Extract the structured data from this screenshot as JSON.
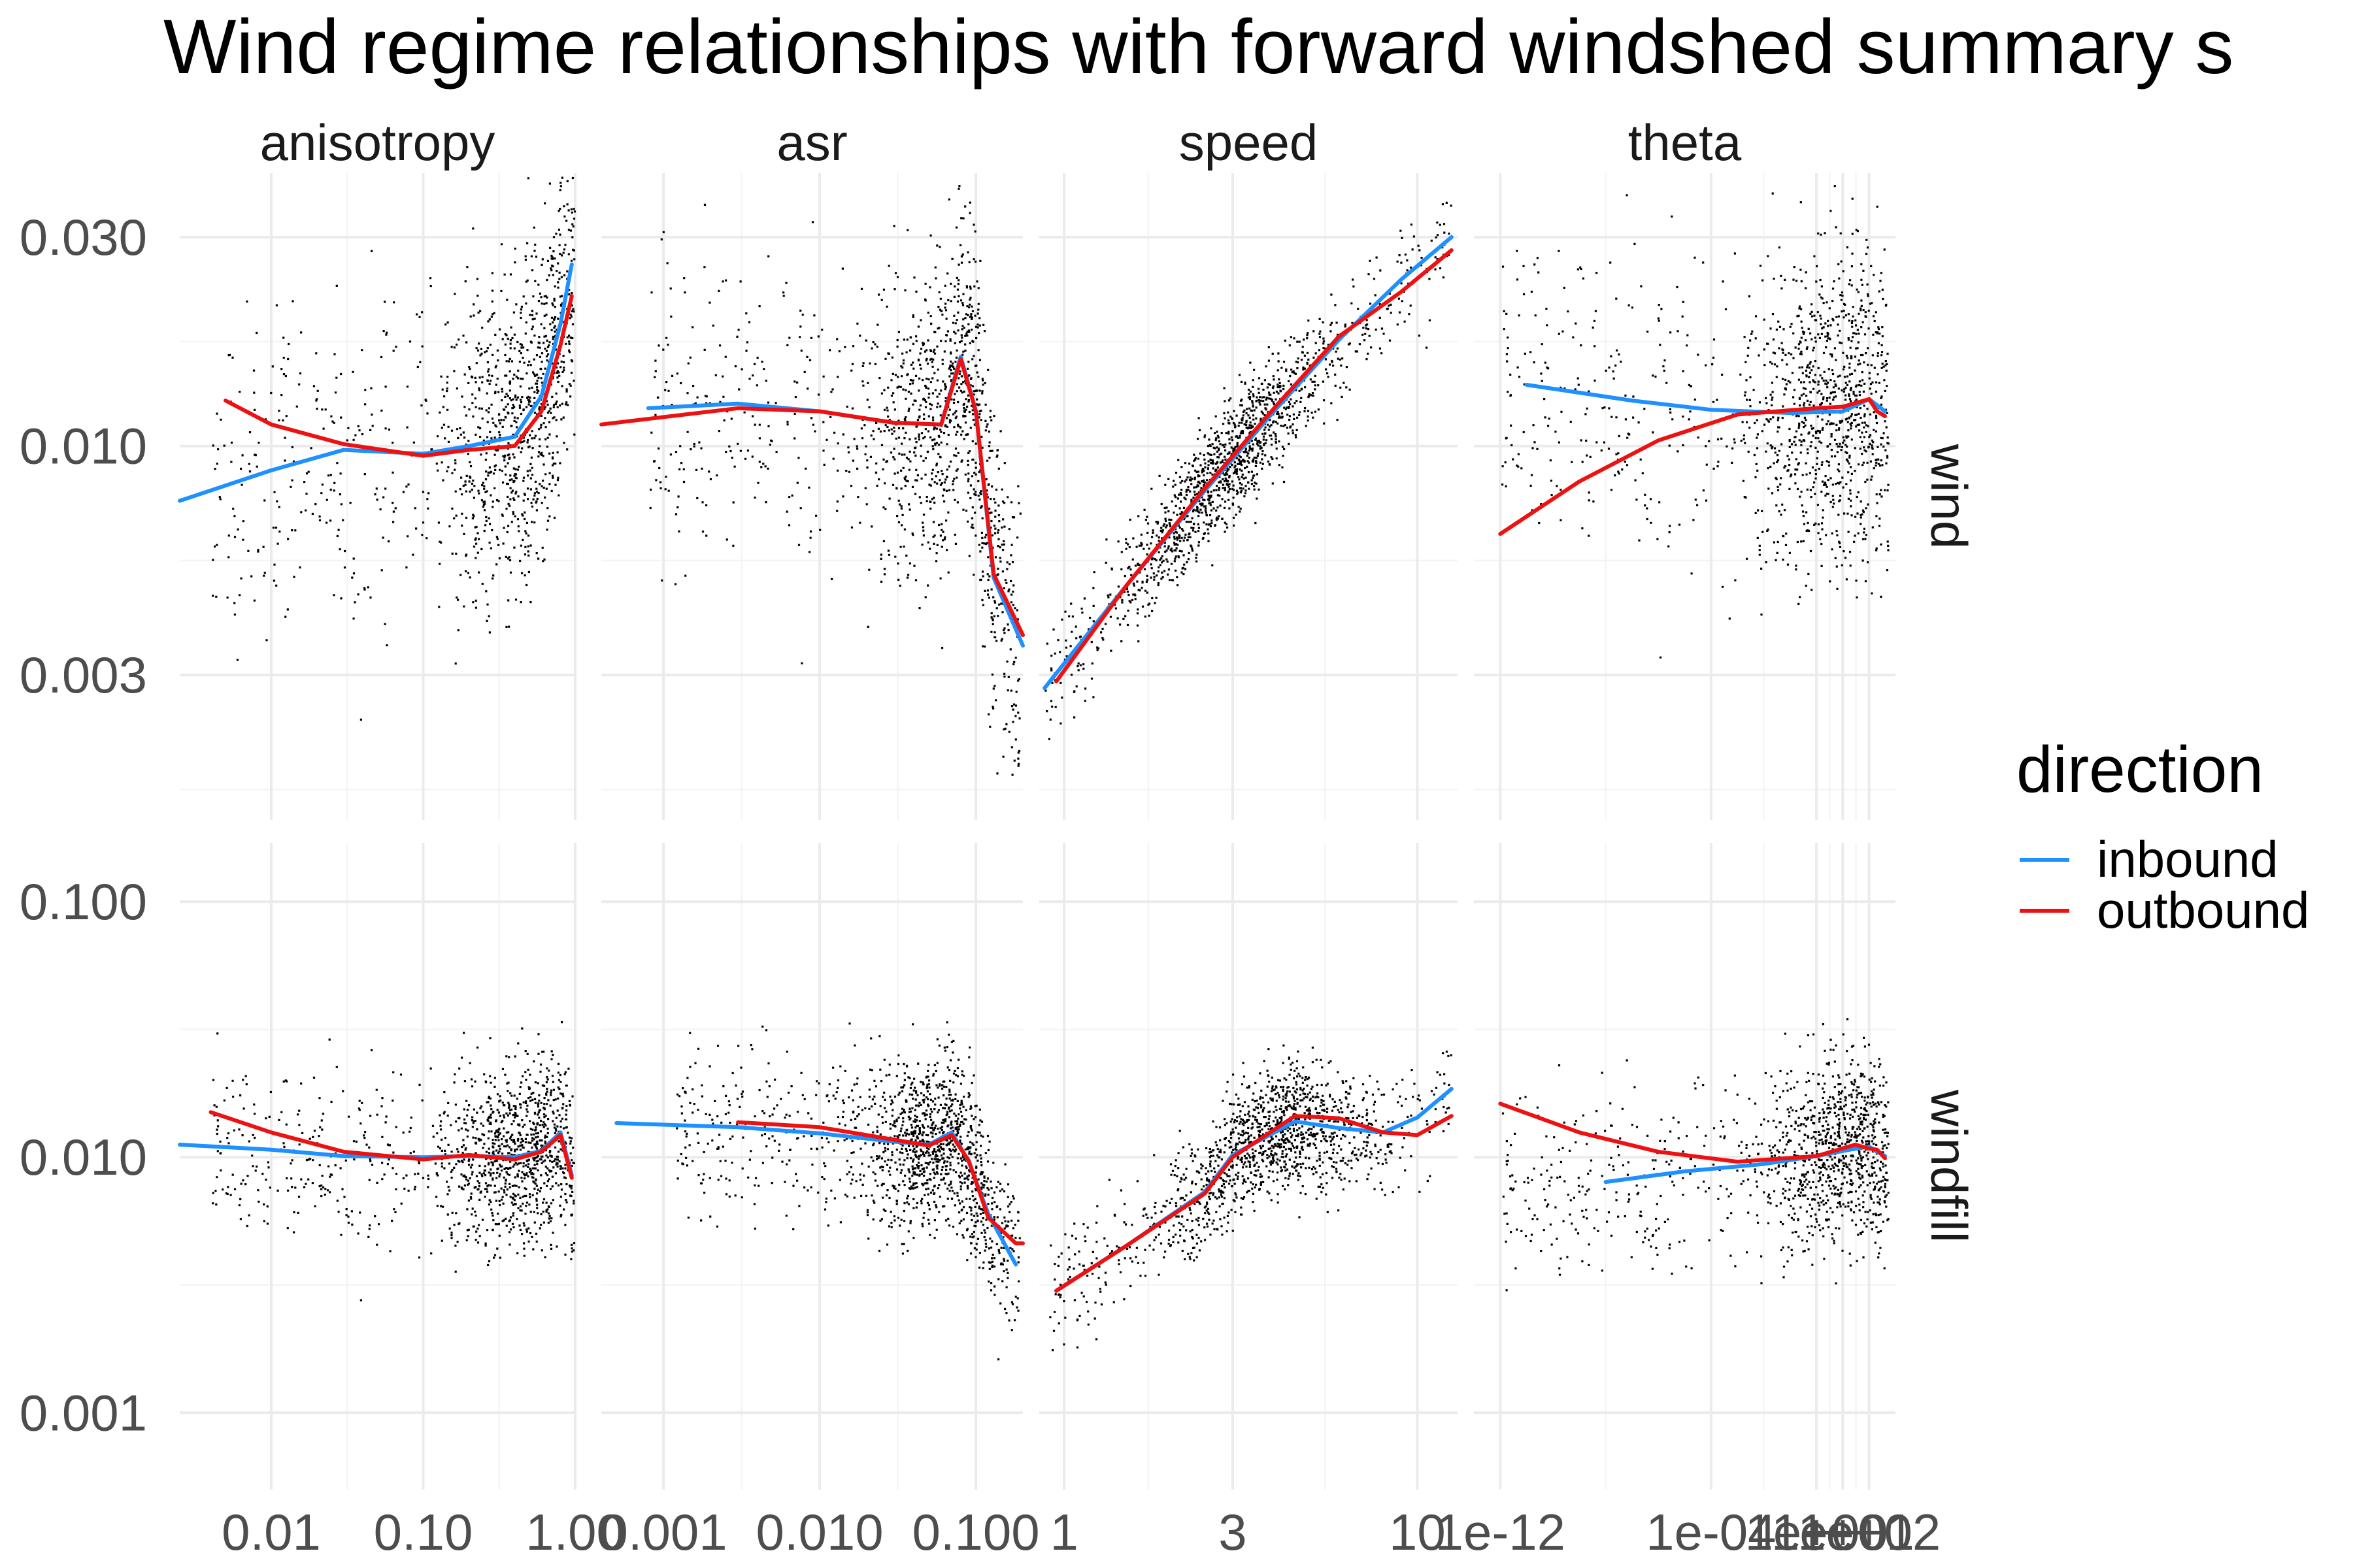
{
  "chart_data": {
    "type": "scatter",
    "title": "Wind regime relationships with forward windshed summary s",
    "facet_columns": [
      "anisotropy",
      "asr",
      "speed",
      "theta"
    ],
    "facet_rows": [
      "wind",
      "windfill"
    ],
    "y_scale": "log10",
    "x_scale": "log10",
    "grid": true,
    "legend": {
      "title": "direction",
      "position": "right",
      "entries": [
        {
          "name": "inbound",
          "color": "#1e90ff"
        },
        {
          "name": "outbound",
          "color": "#ee1111"
        }
      ]
    },
    "x_axes": {
      "anisotropy": {
        "range": [
          0.0025,
          1.0
        ],
        "ticks": [
          0.01,
          0.1,
          1.0
        ],
        "labels": [
          "0.01",
          "0.10",
          "1.00"
        ]
      },
      "asr": {
        "range": [
          0.0004,
          0.2
        ],
        "ticks": [
          0.001,
          0.01,
          0.1
        ],
        "labels": [
          "0.001",
          "0.010",
          "0.100"
        ]
      },
      "speed": {
        "range": [
          0.85,
          13
        ],
        "ticks": [
          1,
          3,
          10
        ],
        "labels": [
          "1",
          "3",
          "10"
        ]
      },
      "theta": {
        "range": [
          1e-13,
          1000
        ],
        "ticks": [
          1e-12,
          0.0001,
          1,
          10,
          100
        ],
        "labels": [
          "1e-12",
          "1e-04",
          "1e+00",
          "1e+01",
          "1e+02"
        ]
      }
    },
    "y_axes": {
      "wind": {
        "range": [
          0.0014,
          0.042
        ],
        "ticks": [
          0.003,
          0.01,
          0.03
        ],
        "labels": [
          "0.003",
          "0.010",
          "0.030"
        ]
      },
      "windfill": {
        "range": [
          0.0005,
          0.17
        ],
        "ticks": [
          0.001,
          0.01,
          0.1
        ],
        "labels": [
          "0.001",
          "0.010",
          "0.100"
        ]
      }
    },
    "panels": [
      {
        "row": "wind",
        "col": "anisotropy",
        "scatter": {
          "x_range": [
            0.004,
            0.98
          ],
          "x_center": 0.55,
          "y_center": 0.011,
          "y_spread": 0.35
        },
        "series": [
          {
            "name": "inbound",
            "x": [
              0.0025,
              0.01,
              0.03,
              0.1,
              0.2,
              0.4,
              0.6,
              0.8,
              0.95
            ],
            "y": [
              0.0075,
              0.0088,
              0.0098,
              0.0096,
              0.01,
              0.0105,
              0.013,
              0.019,
              0.026
            ]
          },
          {
            "name": "outbound",
            "x": [
              0.005,
              0.01,
              0.03,
              0.1,
              0.2,
              0.4,
              0.6,
              0.8,
              0.95
            ],
            "y": [
              0.0127,
              0.0112,
              0.0101,
              0.0095,
              0.0098,
              0.01,
              0.012,
              0.017,
              0.022
            ]
          }
        ]
      },
      {
        "row": "wind",
        "col": "asr",
        "scatter": {
          "x_range": [
            0.0008,
            0.19
          ],
          "x_center": 0.08,
          "y_center": 0.012,
          "y_spread": 0.33
        },
        "series": [
          {
            "name": "inbound",
            "x": [
              0.0008,
              0.003,
              0.01,
              0.03,
              0.06,
              0.08,
              0.1,
              0.13,
              0.2
            ],
            "y": [
              0.0122,
              0.0125,
              0.012,
              0.0113,
              0.0112,
              0.016,
              0.012,
              0.005,
              0.0035
            ]
          },
          {
            "name": "outbound",
            "x": [
              0.0004,
              0.003,
              0.01,
              0.03,
              0.06,
              0.08,
              0.1,
              0.13,
              0.2
            ],
            "y": [
              0.0112,
              0.0122,
              0.012,
              0.0113,
              0.0112,
              0.0158,
              0.012,
              0.0051,
              0.0037
            ]
          }
        ]
      },
      {
        "row": "wind",
        "col": "speed",
        "scatter": {
          "x_range": [
            0.88,
            12.5
          ],
          "x_center": 3,
          "y_center": 0.0105,
          "y_spread": 0.12
        },
        "series": [
          {
            "name": "inbound",
            "x": [
              0.88,
              1.5,
              2.5,
              4,
              6,
              9,
              12.5
            ],
            "y": [
              0.0028,
              0.0048,
              0.0079,
              0.0122,
              0.0175,
              0.024,
              0.03
            ]
          },
          {
            "name": "outbound",
            "x": [
              0.95,
              1.5,
              2.5,
              4,
              6,
              9,
              12.5
            ],
            "y": [
              0.0029,
              0.0048,
              0.008,
              0.0124,
              0.0178,
              0.0225,
              0.028
            ]
          }
        ]
      },
      {
        "row": "wind",
        "col": "theta",
        "scatter": {
          "x_range": [
            1e-12,
            500
          ],
          "x_center": 10,
          "y_center": 0.011,
          "y_spread": 0.33
        },
        "series": [
          {
            "name": "inbound",
            "x": [
              1e-11,
              1e-07,
              0.0001,
              0.1,
              10,
              100,
              200,
              400
            ],
            "y": [
              0.0138,
              0.0127,
              0.0121,
              0.0119,
              0.012,
              0.0128,
              0.0124,
              0.012
            ]
          },
          {
            "name": "outbound",
            "x": [
              1e-12,
              1e-09,
              1e-06,
              0.001,
              1,
              10,
              100,
              200,
              400
            ],
            "y": [
              0.0063,
              0.0083,
              0.0103,
              0.0118,
              0.0122,
              0.0123,
              0.0128,
              0.012,
              0.0117
            ]
          }
        ]
      },
      {
        "row": "windfill",
        "col": "anisotropy",
        "scatter": {
          "x_range": [
            0.004,
            0.98
          ],
          "x_center": 0.5,
          "y_center": 0.01,
          "y_spread": 0.32
        },
        "series": [
          {
            "name": "inbound",
            "x": [
              0.0025,
              0.01,
              0.03,
              0.1,
              0.2,
              0.4,
              0.6,
              0.8,
              0.95
            ],
            "y": [
              0.0112,
              0.0107,
              0.0101,
              0.01,
              0.0101,
              0.01,
              0.0106,
              0.0125,
              0.0085
            ]
          },
          {
            "name": "outbound",
            "x": [
              0.004,
              0.01,
              0.03,
              0.1,
              0.2,
              0.4,
              0.6,
              0.8,
              0.95
            ],
            "y": [
              0.015,
              0.0125,
              0.0105,
              0.0098,
              0.0102,
              0.0098,
              0.0105,
              0.0122,
              0.0083
            ]
          }
        ]
      },
      {
        "row": "windfill",
        "col": "asr",
        "scatter": {
          "x_range": [
            0.0012,
            0.19
          ],
          "x_center": 0.06,
          "y_center": 0.011,
          "y_spread": 0.3
        },
        "series": [
          {
            "name": "inbound",
            "x": [
              0.0005,
              0.003,
              0.01,
              0.03,
              0.05,
              0.07,
              0.09,
              0.12,
              0.18
            ],
            "y": [
              0.0136,
              0.0131,
              0.0124,
              0.0115,
              0.0112,
              0.0125,
              0.0096,
              0.006,
              0.0038
            ]
          },
          {
            "name": "outbound",
            "x": [
              0.003,
              0.01,
              0.03,
              0.05,
              0.07,
              0.09,
              0.12,
              0.18,
              0.2
            ],
            "y": [
              0.0137,
              0.0131,
              0.0117,
              0.0111,
              0.0122,
              0.0097,
              0.0058,
              0.0046,
              0.0046
            ]
          }
        ]
      },
      {
        "row": "windfill",
        "col": "speed",
        "scatter": {
          "x_range": [
            0.9,
            12.5
          ],
          "x_center": 4,
          "y_center": 0.011,
          "y_spread": 0.22
        },
        "series": [
          {
            "name": "inbound",
            "x": [
              0.95,
              1.5,
              2.5,
              3,
              4.5,
              6,
              8,
              10,
              12.5
            ],
            "y": [
              0.003,
              0.0045,
              0.0073,
              0.0102,
              0.0138,
              0.013,
              0.0125,
              0.0143,
              0.0185
            ]
          },
          {
            "name": "outbound",
            "x": [
              0.95,
              1.5,
              2.5,
              3,
              4.5,
              6,
              8,
              10,
              12.5
            ],
            "y": [
              0.003,
              0.0045,
              0.0072,
              0.01,
              0.0145,
              0.0142,
              0.0125,
              0.0122,
              0.0145
            ]
          }
        ]
      },
      {
        "row": "windfill",
        "col": "theta",
        "scatter": {
          "x_range": [
            1e-12,
            500
          ],
          "x_center": 30,
          "y_center": 0.01,
          "y_spread": 0.33
        },
        "series": [
          {
            "name": "inbound",
            "x": [
              1e-08,
              1e-05,
              0.01,
              1,
              30,
              100,
              200,
              400
            ],
            "y": [
              0.008,
              0.0088,
              0.0094,
              0.0101,
              0.0108,
              0.011,
              0.0105,
              0.0101
            ]
          },
          {
            "name": "outbound",
            "x": [
              1e-12,
              1e-09,
              1e-06,
              0.001,
              1,
              30,
              100,
              200,
              400
            ],
            "y": [
              0.0162,
              0.0125,
              0.0105,
              0.0096,
              0.0101,
              0.0112,
              0.0108,
              0.0107,
              0.0099
            ]
          }
        ]
      }
    ]
  }
}
